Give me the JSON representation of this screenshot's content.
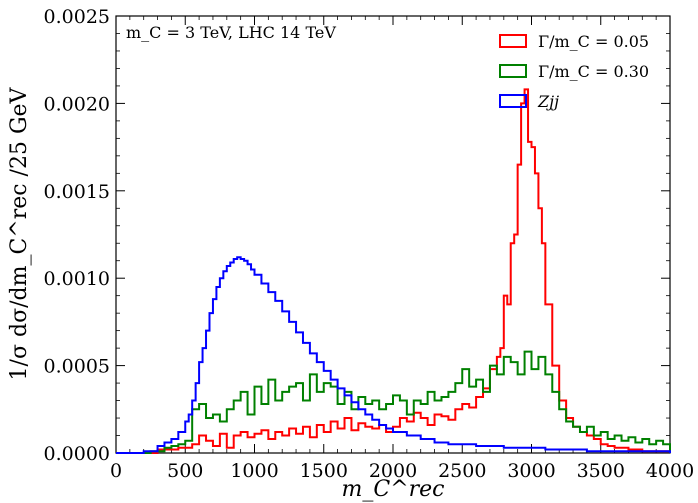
{
  "chart_data": {
    "type": "step-histogram",
    "annotation": "m_C = 3 TeV, LHC 14 TeV",
    "xlabel": "m_C^rec",
    "ylabel": "1/σ dσ/dm_C^rec /25 GeV",
    "xlim": [
      0,
      4000
    ],
    "ylim": [
      0,
      0.0025
    ],
    "x_ticks": [
      "0",
      "500",
      "1000",
      "1500",
      "2000",
      "2500",
      "3000",
      "3500",
      "4000"
    ],
    "y_ticks": [
      "0.0000",
      "0.0005",
      "0.0010",
      "0.0015",
      "0.0020",
      "0.0025"
    ],
    "bin_width": 25,
    "legend_position": "top-right",
    "grid": false,
    "series": [
      {
        "name": "Γ/m_C = 0.05",
        "color": "#ff0000",
        "points": [
          [
            0,
            0
          ],
          [
            200,
            0
          ],
          [
            300,
            2e-05
          ],
          [
            450,
            3e-05
          ],
          [
            550,
            5e-05
          ],
          [
            600,
            0.0001
          ],
          [
            650,
            7e-05
          ],
          [
            700,
            4e-05
          ],
          [
            750,
            0.00011
          ],
          [
            800,
            3e-05
          ],
          [
            850,
            0.0001
          ],
          [
            900,
            0.00012
          ],
          [
            950,
            9e-05
          ],
          [
            1000,
            0.00011
          ],
          [
            1050,
            0.00013
          ],
          [
            1100,
            8e-05
          ],
          [
            1150,
            0.00012
          ],
          [
            1200,
            0.0001
          ],
          [
            1250,
            0.00014
          ],
          [
            1300,
            0.00011
          ],
          [
            1350,
            0.00015
          ],
          [
            1400,
            9e-05
          ],
          [
            1450,
            0.00016
          ],
          [
            1500,
            0.00012
          ],
          [
            1550,
            0.00018
          ],
          [
            1600,
            0.00014
          ],
          [
            1650,
            0.0002
          ],
          [
            1700,
            0.00013
          ],
          [
            1750,
            0.00017
          ],
          [
            1800,
            0.00015
          ],
          [
            1850,
            0.00014
          ],
          [
            1900,
            0.00016
          ],
          [
            1950,
            0.00012
          ],
          [
            2000,
            0.00015
          ],
          [
            2050,
            0.0002
          ],
          [
            2100,
            0.00018
          ],
          [
            2150,
            0.00023
          ],
          [
            2200,
            0.0002
          ],
          [
            2250,
            0.00016
          ],
          [
            2300,
            0.00022
          ],
          [
            2350,
            0.00021
          ],
          [
            2400,
            0.00019
          ],
          [
            2450,
            0.00025
          ],
          [
            2500,
            0.00028
          ],
          [
            2550,
            0.00026
          ],
          [
            2600,
            0.00032
          ],
          [
            2650,
            0.00037
          ],
          [
            2700,
            0.00048
          ],
          [
            2750,
            0.00055
          ],
          [
            2775,
            0.0006
          ],
          [
            2800,
            0.0009
          ],
          [
            2825,
            0.00085
          ],
          [
            2850,
            0.0012
          ],
          [
            2875,
            0.00125
          ],
          [
            2900,
            0.00165
          ],
          [
            2925,
            0.002
          ],
          [
            2950,
            0.00208
          ],
          [
            2975,
            0.00178
          ],
          [
            3000,
            0.00175
          ],
          [
            3025,
            0.0016
          ],
          [
            3050,
            0.0014
          ],
          [
            3075,
            0.0012
          ],
          [
            3100,
            0.00085
          ],
          [
            3150,
            0.0005
          ],
          [
            3200,
            0.0003
          ],
          [
            3250,
            0.0002
          ],
          [
            3300,
            0.00015
          ],
          [
            3350,
            0.00012
          ],
          [
            3400,
            0.0001
          ],
          [
            3450,
            8e-05
          ],
          [
            3500,
            5e-05
          ],
          [
            3550,
            4e-05
          ],
          [
            3600,
            3e-05
          ],
          [
            3700,
            2e-05
          ],
          [
            3800,
            1e-05
          ],
          [
            3900,
            1e-05
          ],
          [
            4000,
            0
          ]
        ]
      },
      {
        "name": "Γ/m_C = 0.30",
        "color": "#008000",
        "points": [
          [
            0,
            0
          ],
          [
            250,
            1e-05
          ],
          [
            350,
            3e-05
          ],
          [
            400,
            4e-05
          ],
          [
            450,
            5e-05
          ],
          [
            500,
            7e-05
          ],
          [
            550,
            0.00025
          ],
          [
            600,
            0.00028
          ],
          [
            650,
            0.0002
          ],
          [
            700,
            0.00022
          ],
          [
            750,
            0.00018
          ],
          [
            800,
            0.00025
          ],
          [
            850,
            0.0003
          ],
          [
            900,
            0.00035
          ],
          [
            950,
            0.00022
          ],
          [
            1000,
            0.00038
          ],
          [
            1050,
            0.00028
          ],
          [
            1100,
            0.00042
          ],
          [
            1150,
            0.0003
          ],
          [
            1200,
            0.00035
          ],
          [
            1250,
            0.00038
          ],
          [
            1300,
            0.0004
          ],
          [
            1350,
            0.0003
          ],
          [
            1400,
            0.00045
          ],
          [
            1450,
            0.00035
          ],
          [
            1500,
            0.0004
          ],
          [
            1550,
            0.00038
          ],
          [
            1600,
            0.00028
          ],
          [
            1650,
            0.00035
          ],
          [
            1700,
            0.00025
          ],
          [
            1750,
            0.00032
          ],
          [
            1800,
            0.00028
          ],
          [
            1850,
            0.0003
          ],
          [
            1900,
            0.00025
          ],
          [
            1950,
            0.00028
          ],
          [
            2000,
            0.00033
          ],
          [
            2050,
            0.0003
          ],
          [
            2100,
            0.00022
          ],
          [
            2150,
            0.0003
          ],
          [
            2200,
            0.00028
          ],
          [
            2250,
            0.00035
          ],
          [
            2300,
            0.0003
          ],
          [
            2350,
            0.00032
          ],
          [
            2400,
            0.00035
          ],
          [
            2450,
            0.0004
          ],
          [
            2500,
            0.00048
          ],
          [
            2550,
            0.00038
          ],
          [
            2600,
            0.00042
          ],
          [
            2650,
            0.00035
          ],
          [
            2700,
            0.0005
          ],
          [
            2750,
            0.00045
          ],
          [
            2800,
            0.00055
          ],
          [
            2850,
            0.00052
          ],
          [
            2900,
            0.00045
          ],
          [
            2950,
            0.00058
          ],
          [
            3000,
            0.00048
          ],
          [
            3050,
            0.00055
          ],
          [
            3100,
            0.00045
          ],
          [
            3150,
            0.00035
          ],
          [
            3200,
            0.00025
          ],
          [
            3250,
            0.00018
          ],
          [
            3300,
            0.00015
          ],
          [
            3350,
            0.00012
          ],
          [
            3400,
            0.00015
          ],
          [
            3450,
            0.0001
          ],
          [
            3500,
            0.00012
          ],
          [
            3550,
            8e-05
          ],
          [
            3600,
            0.0001
          ],
          [
            3650,
            7e-05
          ],
          [
            3700,
            9e-05
          ],
          [
            3750,
            6e-05
          ],
          [
            3800,
            8e-05
          ],
          [
            3850,
            5e-05
          ],
          [
            3900,
            7e-05
          ],
          [
            3950,
            5e-05
          ],
          [
            4000,
            0
          ]
        ]
      },
      {
        "name": "Zjj",
        "color": "#0000ff",
        "points": [
          [
            0,
            0
          ],
          [
            200,
            1e-05
          ],
          [
            300,
            4e-05
          ],
          [
            350,
            6e-05
          ],
          [
            400,
            8e-05
          ],
          [
            450,
            0.00012
          ],
          [
            500,
            0.00018
          ],
          [
            525,
            0.00022
          ],
          [
            550,
            0.0003
          ],
          [
            575,
            0.0004
          ],
          [
            600,
            0.00052
          ],
          [
            625,
            0.0006
          ],
          [
            650,
            0.0007
          ],
          [
            675,
            0.0008
          ],
          [
            700,
            0.00088
          ],
          [
            725,
            0.00095
          ],
          [
            750,
            0.001
          ],
          [
            775,
            0.00104
          ],
          [
            800,
            0.00107
          ],
          [
            825,
            0.00109
          ],
          [
            850,
            0.00111
          ],
          [
            875,
            0.00112
          ],
          [
            900,
            0.00111
          ],
          [
            925,
            0.0011
          ],
          [
            950,
            0.00108
          ],
          [
            975,
            0.00105
          ],
          [
            1000,
            0.00102
          ],
          [
            1050,
            0.00097
          ],
          [
            1100,
            0.00092
          ],
          [
            1150,
            0.00087
          ],
          [
            1200,
            0.00081
          ],
          [
            1250,
            0.00075
          ],
          [
            1300,
            0.00069
          ],
          [
            1350,
            0.00063
          ],
          [
            1400,
            0.00057
          ],
          [
            1450,
            0.00052
          ],
          [
            1500,
            0.00047
          ],
          [
            1550,
            0.00042
          ],
          [
            1600,
            0.00037
          ],
          [
            1650,
            0.00033
          ],
          [
            1700,
            0.00029
          ],
          [
            1750,
            0.00025
          ],
          [
            1800,
            0.00022
          ],
          [
            1850,
            0.00019
          ],
          [
            1900,
            0.00016
          ],
          [
            1950,
            0.00014
          ],
          [
            2000,
            0.00012
          ],
          [
            2100,
            0.0001
          ],
          [
            2200,
            8e-05
          ],
          [
            2300,
            6e-05
          ],
          [
            2400,
            5e-05
          ],
          [
            2500,
            5e-05
          ],
          [
            2600,
            4e-05
          ],
          [
            2700,
            4e-05
          ],
          [
            2800,
            3e-05
          ],
          [
            2900,
            3e-05
          ],
          [
            3000,
            3e-05
          ],
          [
            3100,
            2e-05
          ],
          [
            3200,
            2e-05
          ],
          [
            3300,
            2e-05
          ],
          [
            3400,
            1e-05
          ],
          [
            3500,
            1e-05
          ],
          [
            3600,
            1e-05
          ],
          [
            3700,
            1e-05
          ],
          [
            3800,
            1e-05
          ],
          [
            3900,
            1e-05
          ],
          [
            4000,
            0
          ]
        ]
      }
    ]
  }
}
